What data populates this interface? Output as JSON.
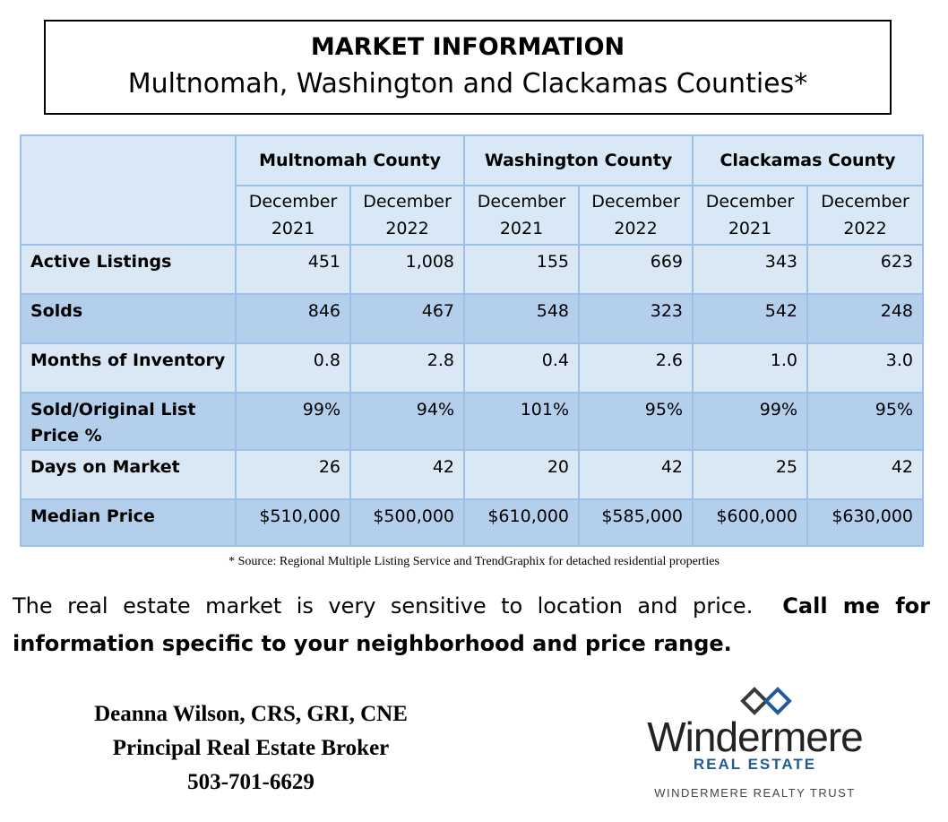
{
  "title": {
    "main": "MARKET INFORMATION",
    "subtitle": "Multnomah, Washington and Clackamas Counties*"
  },
  "table": {
    "counties": [
      "Multnomah County",
      "Washington County",
      "Clackamas County"
    ],
    "periods": [
      "December\n2021",
      "December\n2022",
      "December\n2021",
      "December\n2022",
      "December\n2021",
      "December\n2022"
    ],
    "rows": [
      {
        "label": "Active Listings",
        "values": [
          "451",
          "1,008",
          "155",
          "669",
          "343",
          "623"
        ]
      },
      {
        "label": "Solds",
        "values": [
          "846",
          "467",
          "548",
          "323",
          "542",
          "248"
        ]
      },
      {
        "label": "Months of Inventory",
        "values": [
          "0.8",
          "2.8",
          "0.4",
          "2.6",
          "1.0",
          "3.0"
        ]
      },
      {
        "label": "Sold/Original List Price %",
        "values": [
          "99%",
          "94%",
          "101%",
          "95%",
          "99%",
          "95%"
        ]
      },
      {
        "label": "Days on Market",
        "values": [
          "26",
          "42",
          "20",
          "42",
          "25",
          "42"
        ]
      },
      {
        "label": "Median Price",
        "values": [
          "$510,000",
          "$500,000",
          "$610,000",
          "$585,000",
          "$600,000",
          "$630,000"
        ]
      }
    ]
  },
  "source_note": "* Source: Regional Multiple Listing Service and TrendGraphix for detached residential properties",
  "message": {
    "normal": "The real estate market is very sensitive to location and price.",
    "bold": "Call me for information specific to your neighborhood and price range."
  },
  "agent": {
    "name": "Deanna Wilson, CRS, GRI, CNE",
    "title": "Principal Real Estate Broker",
    "phone": "503-701-6629"
  },
  "logo": {
    "wordmark": "Windermere",
    "sub": "REAL ESTATE",
    "trust": "WINDERMERE REALTY TRUST",
    "icon": "windermere-diamond-icon",
    "colors": {
      "mark_dark": "#3a3a3a",
      "mark_blue": "#1f5c97"
    }
  },
  "colors": {
    "header_bg": "#d8e8f7",
    "row_light": "#dae8f6",
    "row_dark": "#b3cfec",
    "border": "#9cc0e8"
  }
}
